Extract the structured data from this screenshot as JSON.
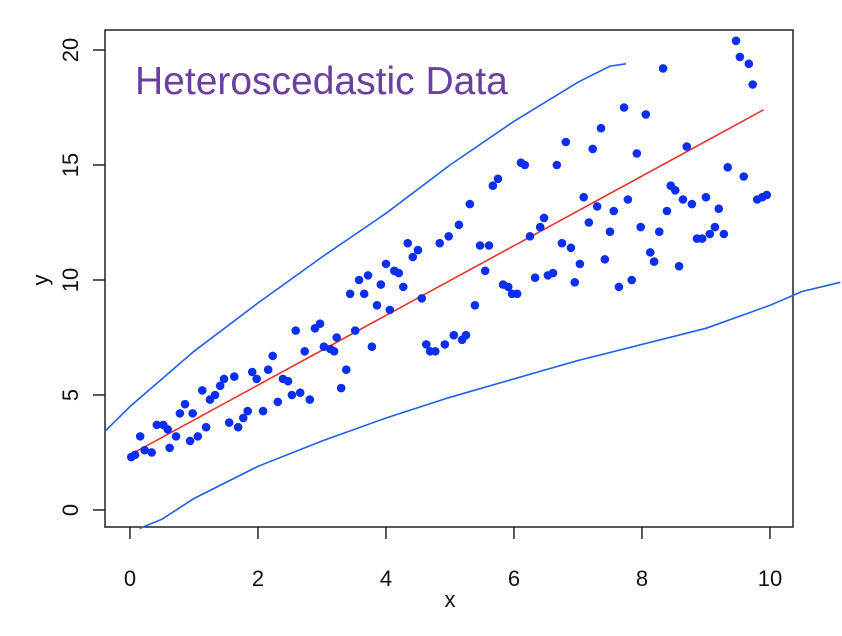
{
  "chart_data": {
    "type": "scatter",
    "title": "Heteroscedastic Data",
    "x_label": "x",
    "y_label": "y",
    "xlim": [
      -0.39,
      10.36
    ],
    "ylim": [
      -0.74,
      20.87
    ],
    "xticks": [
      0,
      2,
      4,
      6,
      8,
      10
    ],
    "yticks": [
      0,
      5,
      10,
      15,
      20
    ],
    "series": [
      {
        "mode": "markers",
        "color": "#0a2ff0",
        "x": [
          0.02,
          0.08,
          0.16,
          0.23,
          0.34,
          0.42,
          0.52,
          0.59,
          0.62,
          0.72,
          0.78,
          0.86,
          0.94,
          0.98,
          1.06,
          1.13,
          1.19,
          1.25,
          1.33,
          1.41,
          1.47,
          1.55,
          1.63,
          1.69,
          1.77,
          1.84,
          1.91,
          1.98,
          2.08,
          2.16,
          2.23,
          2.31,
          2.39,
          2.47,
          2.53,
          2.59,
          2.66,
          2.73,
          2.81,
          2.89,
          2.97,
          3.03,
          3.13,
          3.19,
          3.23,
          3.3,
          3.38,
          3.44,
          3.52,
          3.58,
          3.66,
          3.72,
          3.78,
          3.86,
          3.92,
          4.0,
          4.06,
          4.13,
          4.2,
          4.27,
          4.34,
          4.42,
          4.5,
          4.56,
          4.63,
          4.69,
          4.77,
          4.84,
          4.92,
          4.98,
          5.06,
          5.14,
          5.19,
          5.25,
          5.31,
          5.39,
          5.47,
          5.55,
          5.61,
          5.67,
          5.75,
          5.83,
          5.91,
          5.97,
          6.05,
          6.11,
          6.17,
          6.25,
          6.33,
          6.41,
          6.47,
          6.53,
          6.61,
          6.67,
          6.75,
          6.81,
          6.89,
          6.95,
          7.03,
          7.09,
          7.17,
          7.23,
          7.3,
          7.36,
          7.42,
          7.5,
          7.56,
          7.64,
          7.72,
          7.78,
          7.84,
          7.92,
          7.98,
          8.06,
          8.13,
          8.19,
          8.27,
          8.33,
          8.39,
          8.45,
          8.52,
          8.58,
          8.64,
          8.7,
          8.78,
          8.86,
          8.94,
          9.0,
          9.06,
          9.14,
          9.2,
          9.28,
          9.34,
          9.47,
          9.53,
          9.59,
          9.67,
          9.73,
          9.8,
          9.88,
          9.95
        ],
        "values": [
          2.3,
          2.4,
          3.2,
          2.6,
          2.5,
          3.7,
          3.7,
          3.5,
          2.7,
          3.2,
          4.2,
          4.6,
          3.0,
          4.2,
          3.2,
          5.2,
          3.6,
          4.8,
          5.0,
          5.4,
          5.7,
          3.8,
          5.8,
          3.6,
          4.0,
          4.3,
          6.0,
          5.7,
          4.3,
          6.1,
          6.7,
          4.7,
          5.7,
          5.6,
          5.0,
          7.8,
          5.1,
          6.9,
          4.8,
          7.9,
          8.1,
          7.1,
          7.0,
          6.9,
          7.5,
          5.3,
          6.1,
          9.4,
          7.8,
          10.0,
          9.4,
          10.2,
          7.1,
          8.9,
          9.8,
          10.7,
          8.7,
          10.4,
          10.3,
          9.7,
          11.6,
          11.0,
          11.3,
          9.2,
          7.2,
          6.9,
          6.9,
          11.6,
          7.2,
          11.9,
          7.6,
          12.4,
          7.4,
          7.6,
          13.3,
          8.9,
          11.5,
          10.4,
          11.5,
          14.1,
          14.4,
          9.8,
          9.7,
          9.4,
          9.4,
          15.1,
          15.0,
          11.9,
          10.1,
          12.3,
          12.7,
          10.2,
          10.3,
          15.0,
          11.6,
          16.0,
          11.4,
          9.9,
          10.7,
          13.6,
          12.5,
          15.7,
          13.2,
          16.6,
          10.9,
          12.1,
          13.0,
          9.7,
          17.5,
          13.5,
          10.0,
          15.5,
          12.3,
          17.2,
          11.2,
          10.8,
          12.1,
          19.2,
          13.0,
          14.1,
          13.9,
          10.6,
          13.5,
          15.8,
          13.3,
          11.8,
          11.8,
          13.6,
          12.0,
          12.3,
          13.1,
          12.0,
          14.9,
          20.4,
          19.7,
          14.5,
          19.4,
          18.5,
          13.5,
          13.6,
          13.7
        ]
      },
      {
        "mode": "lines",
        "color": "#e8322c",
        "x": [
          0,
          9.9
        ],
        "values": [
          2.4,
          17.4
        ]
      },
      {
        "mode": "lines",
        "color": "#1f5fe8",
        "x": [
          -0.4,
          0,
          1,
          2,
          3,
          4,
          5,
          6,
          7,
          7.5,
          7.75
        ],
        "values": [
          3.4,
          4.5,
          6.9,
          9.0,
          11.0,
          12.9,
          15.0,
          16.9,
          18.6,
          19.3,
          19.4
        ]
      },
      {
        "mode": "lines",
        "color": "#1f5fe8",
        "x": [
          0.15,
          0.5,
          1,
          2,
          3,
          4,
          5,
          6,
          7,
          8,
          9,
          10,
          10.5,
          11.1
        ],
        "values": [
          -0.8,
          -0.4,
          0.5,
          1.9,
          3.0,
          4.0,
          4.9,
          5.7,
          6.5,
          7.2,
          7.9,
          8.9,
          9.5,
          9.9
        ]
      }
    ]
  }
}
